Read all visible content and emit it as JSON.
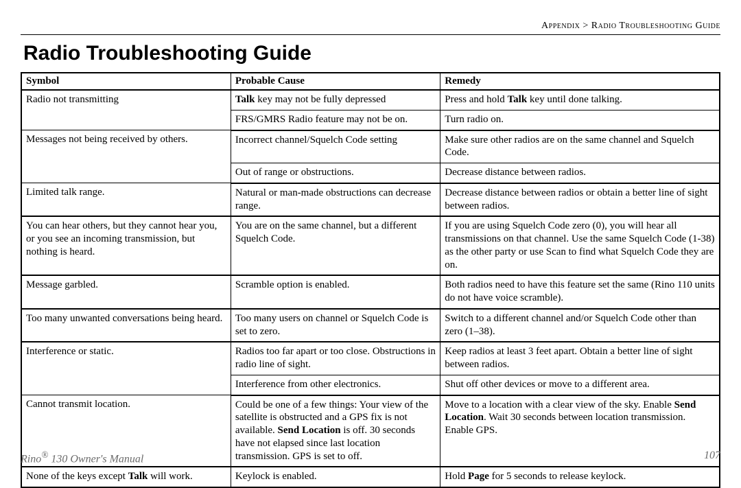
{
  "breadcrumb": "Appendix > Radio Troubleshooting Guide",
  "title": "Radio Troubleshooting Guide",
  "columns": [
    "Symbol",
    "Probable Cause",
    "Remedy"
  ],
  "footer_left_html": "Rino<sup>®</sup> 130 Owner's Manual",
  "page_number": "107",
  "rows": [
    {
      "symptom": "Radio not transmitting",
      "cause_html": "<b>Talk</b> key may not be fully depressed",
      "remedy_html": "Press and hold <b>Talk</b> key until done talking.",
      "group_end": false,
      "symptom_rowspan": 2
    },
    {
      "symptom": "",
      "cause_html": "FRS/GMRS Radio feature may not be on.",
      "remedy_html": "Turn radio on.",
      "group_end": true
    },
    {
      "symptom": "Messages not being received by others.",
      "cause_html": "Incorrect channel/Squelch Code setting",
      "remedy_html": "Make sure other radios are on the same channel and Squelch Code.",
      "group_end": false,
      "symptom_rowspan": 2
    },
    {
      "symptom": "",
      "cause_html": "Out of range or obstructions.",
      "remedy_html": "Decrease distance between radios.",
      "group_end": true
    },
    {
      "symptom": "Limited talk range.",
      "cause_html": "Natural or man-made obstructions can decrease range.",
      "remedy_html": "Decrease distance between radios or obtain a better line of sight between radios.",
      "group_end": true
    },
    {
      "symptom": "You can hear others, but they cannot hear you, or you see an incoming transmission, but nothing is heard.",
      "cause_html": "You are on the same channel, but a different Squelch Code.",
      "remedy_html": "If you are using Squelch Code zero (0), you will hear all transmissions on that channel. Use the same Squelch Code (1-38) as the other party or use Scan to find what Squelch Code they are on.",
      "group_end": true
    },
    {
      "symptom": "Message garbled.",
      "cause_html": "Scramble option is enabled.",
      "remedy_html": "Both radios need to have this feature set the same (Rino 110 units do not have voice scramble).",
      "group_end": true
    },
    {
      "symptom": "Too many unwanted conversations being heard.",
      "cause_html": "Too many users on channel or Squelch Code is set to zero.",
      "remedy_html": "Switch to a different channel and/or Squelch Code other than zero (1–38).",
      "group_end": true
    },
    {
      "symptom": "Interference or static.",
      "cause_html": "Radios too far apart or too close. Obstructions in radio line of sight.",
      "remedy_html": "Keep radios at least 3 feet apart. Obtain a better line of sight between radios.",
      "group_end": false,
      "symptom_rowspan": 2
    },
    {
      "symptom": "",
      "cause_html": "Interference from other electronics.",
      "remedy_html": "Shut off other devices or move to a different area.",
      "group_end": true
    },
    {
      "symptom": "Cannot transmit location.",
      "cause_html": "Could be one of a few things: Your view of the satellite is obstructed and a GPS fix is not available. <b>Send Location</b> is off. 30 seconds have not elapsed since last location transmission. GPS is set to off.",
      "remedy_html": "Move to a location with a clear view of the sky. Enable <b>Send Location</b>. Wait 30 seconds between location transmission. Enable GPS.",
      "group_end": true
    },
    {
      "symptom_html": "None of the keys except <b>Talk</b> will work.",
      "cause_html": "Keylock is enabled.",
      "remedy_html": "Hold <b>Page</b> for 5 seconds to release keylock.",
      "group_end": false,
      "last": true
    }
  ]
}
